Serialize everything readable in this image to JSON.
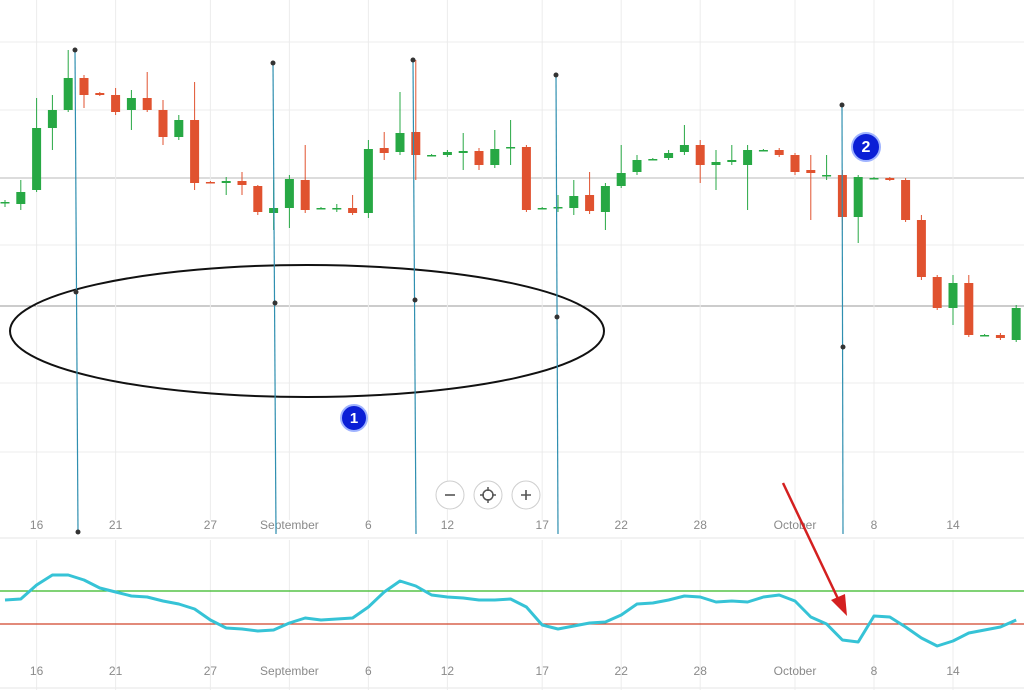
{
  "chart_data": [
    {
      "type": "candlestick",
      "categories": [
        null,
        null,
        "16",
        null,
        null,
        null,
        null,
        "21",
        null,
        null,
        null,
        null,
        null,
        "27",
        null,
        null,
        null,
        null,
        "September",
        null,
        null,
        null,
        null,
        "6",
        null,
        null,
        null,
        null,
        "12",
        null,
        null,
        null,
        null,
        null,
        "17",
        null,
        null,
        null,
        null,
        "22",
        null,
        null,
        null,
        null,
        "28",
        null,
        null,
        null,
        null,
        null,
        "October",
        null,
        null,
        null,
        null,
        "8",
        null,
        null,
        null,
        null,
        "14",
        null,
        null,
        null,
        null
      ],
      "open": [
        397,
        396,
        410,
        472,
        490,
        522,
        507,
        505,
        490,
        502,
        490,
        463,
        480,
        418,
        417,
        419,
        414,
        387,
        392,
        420,
        392,
        392,
        392,
        387,
        452,
        448,
        468,
        445,
        445,
        447,
        449,
        435,
        453,
        453,
        392,
        393,
        392,
        405,
        388,
        414,
        428,
        441,
        442,
        448,
        455,
        435,
        438,
        435,
        450,
        450,
        445,
        430,
        425,
        425,
        383,
        422,
        422,
        420,
        380,
        323,
        292,
        317,
        265,
        265,
        260
      ],
      "high": [
        400,
        420,
        502,
        505,
        550,
        525,
        508,
        512,
        510,
        528,
        500,
        485,
        518,
        419,
        423,
        428,
        415,
        420,
        425,
        455,
        393,
        396,
        405,
        460,
        468,
        508,
        540,
        446,
        450,
        467,
        452,
        470,
        480,
        455,
        393,
        405,
        420,
        428,
        417,
        455,
        445,
        442,
        450,
        475,
        460,
        450,
        455,
        455,
        451,
        452,
        447,
        445,
        445,
        430,
        425,
        423,
        423,
        422,
        385,
        325,
        325,
        325,
        266,
        267,
        295
      ],
      "low": [
        393,
        390,
        408,
        450,
        488,
        492,
        504,
        485,
        470,
        488,
        455,
        460,
        410,
        417,
        405,
        405,
        385,
        370,
        372,
        387,
        391,
        388,
        385,
        382,
        440,
        445,
        420,
        444,
        443,
        430,
        430,
        432,
        435,
        388,
        391,
        388,
        385,
        386,
        370,
        412,
        425,
        440,
        440,
        445,
        417,
        410,
        435,
        390,
        449,
        443,
        425,
        380,
        420,
        370,
        357,
        421,
        419,
        378,
        320,
        290,
        275,
        263,
        264,
        260,
        258
      ],
      "close": [
        398,
        408,
        472,
        490,
        522,
        505,
        505,
        488,
        502,
        490,
        463,
        480,
        417,
        417,
        419,
        415,
        388,
        392,
        421,
        390,
        392,
        392,
        387,
        451,
        447,
        467,
        445,
        445,
        448,
        449,
        435,
        451,
        453,
        390,
        392,
        393,
        404,
        389,
        414,
        427,
        440,
        441,
        447,
        455,
        435,
        438,
        440,
        450,
        450,
        445,
        428,
        427,
        425,
        383,
        423,
        422,
        420,
        380,
        323,
        292,
        317,
        265,
        265,
        262,
        292
      ],
      "up_color": "#27a844",
      "down_color": "#e0522f",
      "ylim": [
        80,
        600
      ],
      "annotations": [
        "1",
        "2"
      ]
    },
    {
      "type": "line",
      "categories": [
        null,
        null,
        "16",
        null,
        null,
        null,
        null,
        "21",
        null,
        null,
        null,
        null,
        null,
        "27",
        null,
        null,
        null,
        null,
        "September",
        null,
        null,
        null,
        null,
        "6",
        null,
        null,
        null,
        null,
        "12",
        null,
        null,
        null,
        null,
        null,
        "17",
        null,
        null,
        null,
        null,
        "22",
        null,
        null,
        null,
        null,
        "28",
        null,
        null,
        null,
        null,
        null,
        "October",
        null,
        null,
        null,
        null,
        "8",
        null,
        null,
        null,
        null,
        "14",
        null,
        null,
        null,
        null
      ],
      "values": [
        100,
        101,
        115,
        125,
        125,
        120,
        112,
        108,
        104,
        103,
        99,
        96,
        91,
        80,
        72,
        71,
        69,
        70,
        77,
        82,
        80,
        81,
        82,
        93,
        108,
        119,
        114,
        105,
        103,
        102,
        100,
        100,
        101,
        93,
        75,
        71,
        74,
        77,
        78,
        85,
        96,
        97,
        100,
        104,
        103,
        98,
        99,
        98,
        103,
        105,
        99,
        83,
        76,
        60,
        58,
        84,
        83,
        73,
        62,
        54,
        59,
        67,
        70,
        73,
        80
      ],
      "color": "#36c3d6",
      "levels": [
        {
          "value": 109,
          "color": "#35b823"
        },
        {
          "value": 76,
          "color": "#d0442a"
        }
      ],
      "ylim": [
        10,
        160
      ]
    }
  ]
}
